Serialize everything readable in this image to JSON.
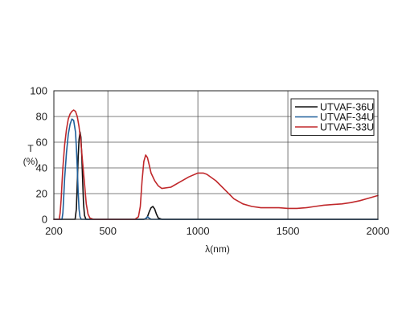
{
  "chart_data": {
    "type": "line",
    "title": "",
    "xlabel": "λ(nm)",
    "ylabel": {
      "line1": "T",
      "line2": "(%)"
    },
    "xlim": [
      200,
      2000
    ],
    "ylim": [
      0,
      100
    ],
    "x_ticks": [
      200,
      500,
      1000,
      1500,
      2000
    ],
    "y_ticks": [
      0,
      20,
      40,
      60,
      80,
      100
    ],
    "grid": true,
    "legend_position": "top-right",
    "series": [
      {
        "name": "UTVAF-36U",
        "color": "#111111",
        "x": [
          200,
          318,
          325,
          330,
          335,
          340,
          345,
          350,
          355,
          360,
          365,
          370,
          378,
          700,
          710,
          720,
          730,
          740,
          750,
          760,
          770,
          780,
          800,
          2000
        ],
        "y": [
          0,
          0,
          8,
          28,
          48,
          62,
          68,
          64,
          50,
          30,
          12,
          3,
          0,
          0,
          0.5,
          2,
          6,
          9,
          10,
          8,
          4,
          1,
          0,
          0
        ]
      },
      {
        "name": "UTVAF-34U",
        "color": "#1f5f9a",
        "x": [
          200,
          245,
          250,
          255,
          260,
          270,
          280,
          290,
          300,
          310,
          320,
          325,
          330,
          335,
          340,
          345,
          352,
          700,
          710,
          715,
          720,
          725,
          730,
          740,
          2000
        ],
        "y": [
          0,
          0,
          5,
          18,
          32,
          52,
          66,
          74,
          78,
          77,
          68,
          56,
          40,
          22,
          8,
          2,
          0,
          0,
          0.5,
          1,
          2,
          1.5,
          0.8,
          0,
          0
        ]
      },
      {
        "name": "UTVAF-33U",
        "color": "#c0282b",
        "x": [
          200,
          230,
          235,
          240,
          245,
          250,
          260,
          270,
          280,
          290,
          300,
          310,
          320,
          330,
          340,
          350,
          360,
          370,
          380,
          390,
          400,
          420,
          600,
          650,
          670,
          680,
          690,
          700,
          710,
          720,
          730,
          740,
          760,
          780,
          800,
          850,
          900,
          950,
          1000,
          1030,
          1050,
          1100,
          1150,
          1200,
          1250,
          1300,
          1350,
          1400,
          1450,
          1500,
          1550,
          1600,
          1650,
          1700,
          1750,
          1800,
          1850,
          1900,
          1950,
          2000
        ],
        "y": [
          0,
          0,
          5,
          15,
          28,
          40,
          58,
          70,
          78,
          82,
          84,
          85,
          84,
          80,
          72,
          60,
          44,
          28,
          12,
          4,
          1,
          0,
          0,
          0,
          2,
          10,
          30,
          45,
          50,
          48,
          42,
          36,
          30,
          26,
          24,
          25,
          29,
          33,
          36,
          36,
          35,
          30,
          23,
          16,
          12,
          10,
          9,
          9,
          9,
          8.5,
          8.5,
          9,
          10,
          11,
          11.5,
          12,
          13,
          14.5,
          16.5,
          18.5
        ]
      }
    ]
  }
}
